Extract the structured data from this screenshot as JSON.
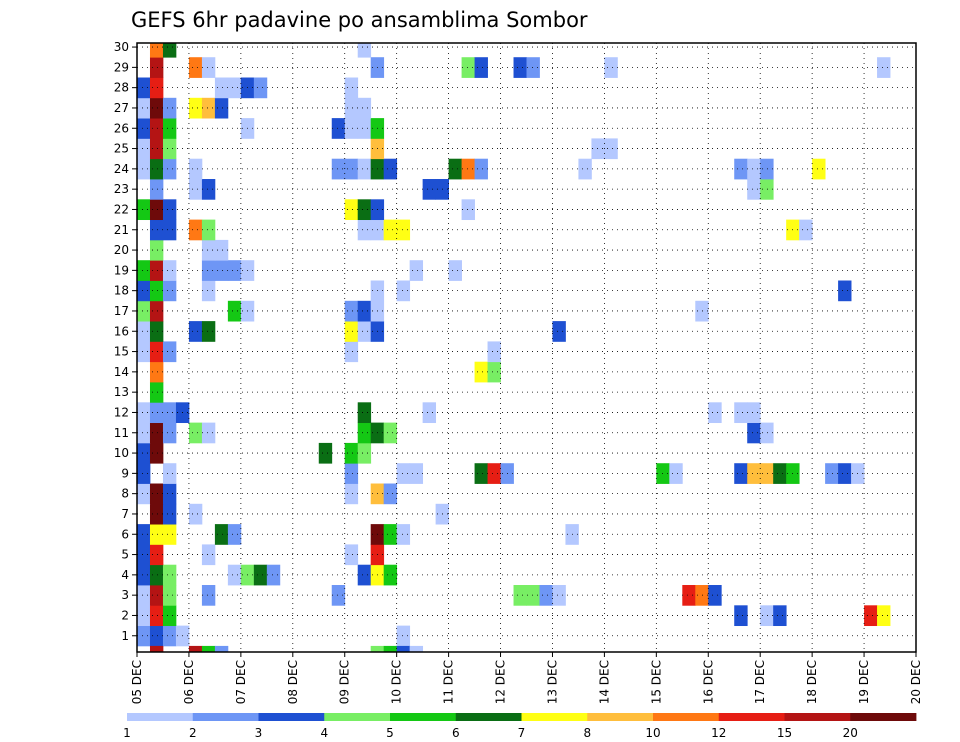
{
  "chart_data": {
    "type": "heatmap",
    "title": "GEFS 6hr padavine po ansamblima Sombor",
    "xlabel": "",
    "ylabel": "",
    "x_ticks": [
      "05 DEC",
      "06 DEC",
      "07 DEC",
      "08 DEC",
      "09 DEC",
      "10 DEC",
      "11 DEC",
      "12 DEC",
      "13 DEC",
      "14 DEC",
      "15 DEC",
      "16 DEC",
      "17 DEC",
      "18 DEC",
      "19 DEC",
      "20 DEC"
    ],
    "y_ticks": [
      "1",
      "2",
      "3",
      "4",
      "5",
      "6",
      "7",
      "8",
      "9",
      "10",
      "11",
      "12",
      "13",
      "14",
      "15",
      "16",
      "17",
      "18",
      "19",
      "20",
      "21",
      "22",
      "23",
      "24",
      "25",
      "26",
      "27",
      "28",
      "29",
      "30"
    ],
    "xlim": [
      0,
      60
    ],
    "ylim": [
      0.2,
      30.2
    ],
    "x_unit": "6-hour steps from 05 DEC",
    "y_unit": "ensemble member",
    "grid": true,
    "colorbar": {
      "position": "bottom",
      "levels": [
        1,
        2,
        3,
        4,
        5,
        6,
        7,
        8,
        10,
        12,
        15,
        20
      ],
      "labels": [
        "1",
        "2",
        "3",
        "4",
        "5",
        "6",
        "7",
        "8",
        "10",
        "12",
        "15",
        "20"
      ],
      "colors": [
        "#b4c8ff",
        "#6e96f5",
        "#1e50d2",
        "#78ee64",
        "#14c814",
        "#0a6e14",
        "#ffff14",
        "#ffbe3c",
        "#ff7814",
        "#e61e14",
        "#b41414",
        "#6e0a0a"
      ]
    },
    "cells": [
      {
        "m": 1,
        "t": [
          [
            0,
            2
          ],
          [
            1,
            3
          ],
          [
            2,
            2
          ],
          [
            3,
            1
          ],
          [
            20,
            1
          ]
        ]
      },
      {
        "m": 2,
        "t": [
          [
            0,
            1
          ],
          [
            1,
            10
          ],
          [
            2,
            5
          ],
          [
            46,
            3
          ],
          [
            48,
            1
          ],
          [
            49,
            3
          ],
          [
            56,
            10
          ],
          [
            57,
            7
          ]
        ]
      },
      {
        "m": 3,
        "t": [
          [
            0,
            1
          ],
          [
            1,
            11
          ],
          [
            2,
            4
          ],
          [
            5,
            2
          ],
          [
            15,
            2
          ],
          [
            29,
            4
          ],
          [
            30,
            4
          ],
          [
            31,
            2
          ],
          [
            32,
            1
          ],
          [
            42,
            10
          ],
          [
            43,
            9
          ],
          [
            44,
            3
          ]
        ]
      },
      {
        "m": 4,
        "t": [
          [
            0,
            3
          ],
          [
            1,
            6
          ],
          [
            2,
            4
          ],
          [
            7,
            1
          ],
          [
            8,
            4
          ],
          [
            9,
            6
          ],
          [
            10,
            2
          ],
          [
            17,
            3
          ],
          [
            18,
            7
          ],
          [
            19,
            5
          ]
        ]
      },
      {
        "m": 5,
        "t": [
          [
            0,
            3
          ],
          [
            1,
            10
          ],
          [
            5,
            1
          ],
          [
            16,
            1
          ],
          [
            18,
            10
          ]
        ]
      },
      {
        "m": 6,
        "t": [
          [
            0,
            3
          ],
          [
            1,
            7
          ],
          [
            2,
            7
          ],
          [
            6,
            6
          ],
          [
            7,
            2
          ],
          [
            18,
            12
          ],
          [
            19,
            5
          ],
          [
            20,
            1
          ],
          [
            33,
            1
          ]
        ]
      },
      {
        "m": 7,
        "t": [
          [
            1,
            12
          ],
          [
            2,
            3
          ],
          [
            4,
            1
          ],
          [
            23,
            1
          ]
        ]
      },
      {
        "m": 8,
        "t": [
          [
            0,
            1
          ],
          [
            1,
            12
          ],
          [
            2,
            3
          ],
          [
            16,
            1
          ],
          [
            18,
            8
          ],
          [
            19,
            2
          ]
        ]
      },
      {
        "m": 9,
        "t": [
          [
            0,
            3
          ],
          [
            2,
            1
          ],
          [
            16,
            2
          ],
          [
            20,
            1
          ],
          [
            21,
            1
          ],
          [
            26,
            6
          ],
          [
            27,
            10
          ],
          [
            28,
            2
          ],
          [
            40,
            5
          ],
          [
            41,
            1
          ],
          [
            46,
            3
          ],
          [
            47,
            8
          ],
          [
            48,
            8
          ],
          [
            49,
            6
          ],
          [
            50,
            5
          ],
          [
            53,
            2
          ],
          [
            54,
            3
          ],
          [
            55,
            1
          ]
        ]
      },
      {
        "m": 10,
        "t": [
          [
            0,
            3
          ],
          [
            1,
            12
          ],
          [
            14,
            6
          ],
          [
            16,
            5
          ],
          [
            17,
            4
          ]
        ]
      },
      {
        "m": 11,
        "t": [
          [
            0,
            1
          ],
          [
            1,
            12
          ],
          [
            2,
            2
          ],
          [
            4,
            4
          ],
          [
            5,
            1
          ],
          [
            17,
            5
          ],
          [
            18,
            6
          ],
          [
            19,
            4
          ],
          [
            47,
            3
          ],
          [
            48,
            1
          ]
        ]
      },
      {
        "m": 12,
        "t": [
          [
            0,
            1
          ],
          [
            1,
            2
          ],
          [
            2,
            2
          ],
          [
            3,
            3
          ],
          [
            17,
            6
          ],
          [
            22,
            1
          ],
          [
            44,
            1
          ],
          [
            46,
            1
          ],
          [
            47,
            1
          ]
        ]
      },
      {
        "m": 13,
        "t": [
          [
            1,
            5
          ]
        ]
      },
      {
        "m": 14,
        "t": [
          [
            1,
            9
          ],
          [
            26,
            7
          ],
          [
            27,
            4
          ]
        ]
      },
      {
        "m": 15,
        "t": [
          [
            0,
            1
          ],
          [
            1,
            10
          ],
          [
            2,
            2
          ],
          [
            16,
            1
          ],
          [
            27,
            1
          ]
        ]
      },
      {
        "m": 16,
        "t": [
          [
            0,
            1
          ],
          [
            1,
            6
          ],
          [
            4,
            3
          ],
          [
            5,
            6
          ],
          [
            16,
            7
          ],
          [
            17,
            1
          ],
          [
            18,
            3
          ],
          [
            32,
            3
          ]
        ]
      },
      {
        "m": 17,
        "t": [
          [
            0,
            4
          ],
          [
            1,
            11
          ],
          [
            7,
            5
          ],
          [
            8,
            1
          ],
          [
            16,
            2
          ],
          [
            17,
            3
          ],
          [
            18,
            1
          ],
          [
            43,
            1
          ]
        ]
      },
      {
        "m": 18,
        "t": [
          [
            0,
            3
          ],
          [
            1,
            5
          ],
          [
            2,
            2
          ],
          [
            5,
            1
          ],
          [
            18,
            1
          ],
          [
            20,
            1
          ],
          [
            54,
            3
          ]
        ]
      },
      {
        "m": 19,
        "t": [
          [
            0,
            5
          ],
          [
            1,
            11
          ],
          [
            2,
            1
          ],
          [
            5,
            2
          ],
          [
            6,
            2
          ],
          [
            7,
            2
          ],
          [
            8,
            1
          ],
          [
            21,
            1
          ],
          [
            24,
            1
          ]
        ]
      },
      {
        "m": 20,
        "t": [
          [
            1,
            4
          ],
          [
            5,
            1
          ],
          [
            6,
            1
          ]
        ]
      },
      {
        "m": 21,
        "t": [
          [
            1,
            3
          ],
          [
            2,
            3
          ],
          [
            4,
            9
          ],
          [
            5,
            4
          ],
          [
            17,
            1
          ],
          [
            18,
            1
          ],
          [
            19,
            7
          ],
          [
            20,
            7
          ],
          [
            50,
            7
          ],
          [
            51,
            1
          ]
        ]
      },
      {
        "m": 22,
        "t": [
          [
            0,
            5
          ],
          [
            1,
            12
          ],
          [
            2,
            3
          ],
          [
            16,
            7
          ],
          [
            17,
            6
          ],
          [
            18,
            3
          ],
          [
            25,
            1
          ]
        ]
      },
      {
        "m": 23,
        "t": [
          [
            1,
            2
          ],
          [
            4,
            1
          ],
          [
            5,
            3
          ],
          [
            22,
            3
          ],
          [
            23,
            3
          ],
          [
            47,
            1
          ],
          [
            48,
            4
          ]
        ]
      },
      {
        "m": 24,
        "t": [
          [
            0,
            1
          ],
          [
            1,
            6
          ],
          [
            2,
            2
          ],
          [
            4,
            1
          ],
          [
            15,
            2
          ],
          [
            16,
            2
          ],
          [
            17,
            1
          ],
          [
            18,
            6
          ],
          [
            19,
            3
          ],
          [
            24,
            6
          ],
          [
            25,
            9
          ],
          [
            26,
            2
          ],
          [
            34,
            1
          ],
          [
            46,
            2
          ],
          [
            47,
            1
          ],
          [
            48,
            2
          ],
          [
            52,
            7
          ]
        ]
      },
      {
        "m": 25,
        "t": [
          [
            0,
            1
          ],
          [
            1,
            11
          ],
          [
            2,
            4
          ],
          [
            18,
            8
          ],
          [
            35,
            1
          ],
          [
            36,
            1
          ]
        ]
      },
      {
        "m": 26,
        "t": [
          [
            0,
            3
          ],
          [
            1,
            11
          ],
          [
            2,
            5
          ],
          [
            8,
            1
          ],
          [
            15,
            3
          ],
          [
            16,
            1
          ],
          [
            17,
            1
          ],
          [
            18,
            5
          ]
        ]
      },
      {
        "m": 27,
        "t": [
          [
            0,
            1
          ],
          [
            1,
            12
          ],
          [
            2,
            2
          ],
          [
            4,
            7
          ],
          [
            5,
            8
          ],
          [
            6,
            3
          ],
          [
            16,
            1
          ],
          [
            17,
            1
          ]
        ]
      },
      {
        "m": 28,
        "t": [
          [
            0,
            3
          ],
          [
            1,
            10
          ],
          [
            6,
            1
          ],
          [
            7,
            1
          ],
          [
            8,
            3
          ],
          [
            9,
            2
          ],
          [
            16,
            1
          ]
        ]
      },
      {
        "m": 29,
        "t": [
          [
            1,
            11
          ],
          [
            4,
            9
          ],
          [
            5,
            1
          ],
          [
            18,
            2
          ],
          [
            25,
            4
          ],
          [
            26,
            3
          ],
          [
            29,
            3
          ],
          [
            30,
            2
          ],
          [
            36,
            1
          ],
          [
            57,
            1
          ]
        ]
      },
      {
        "m": 30,
        "t": [
          [
            1,
            9
          ],
          [
            2,
            6
          ],
          [
            17,
            1
          ]
        ]
      },
      {
        "m": 0,
        "t": [
          [
            1,
            11
          ],
          [
            4,
            11
          ],
          [
            5,
            5
          ],
          [
            6,
            2
          ],
          [
            18,
            4
          ],
          [
            19,
            5
          ],
          [
            20,
            3
          ],
          [
            21,
            1
          ]
        ]
      }
    ]
  }
}
